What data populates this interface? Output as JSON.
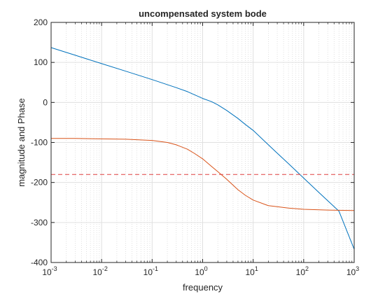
{
  "chart_data": {
    "type": "line",
    "title": "uncompensated system bode",
    "xlabel": "frequency",
    "ylabel": "magnitude and Phase",
    "xscale": "log",
    "xlim": [
      0.001,
      1000
    ],
    "ylim": [
      -400,
      200
    ],
    "grid": true,
    "minor_grid": true,
    "legend": "none",
    "x_ticks": [
      {
        "base": "10",
        "exp": "-3",
        "value": 0.001
      },
      {
        "base": "10",
        "exp": "-2",
        "value": 0.01
      },
      {
        "base": "10",
        "exp": "-1",
        "value": 0.1
      },
      {
        "base": "10",
        "exp": "0",
        "value": 1
      },
      {
        "base": "10",
        "exp": "1",
        "value": 10
      },
      {
        "base": "10",
        "exp": "2",
        "value": 100
      },
      {
        "base": "10",
        "exp": "3",
        "value": 1000
      }
    ],
    "y_ticks": [
      {
        "label": "200",
        "value": 200
      },
      {
        "label": "100",
        "value": 100
      },
      {
        "label": "0",
        "value": 0
      },
      {
        "label": "-100",
        "value": -100
      },
      {
        "label": "-200",
        "value": -200
      },
      {
        "label": "-300",
        "value": -300
      },
      {
        "label": "-400",
        "value": -400
      }
    ],
    "series": [
      {
        "color": "#0072bd",
        "style": "solid",
        "x": [
          0.001,
          0.003,
          0.01,
          0.03,
          0.1,
          0.3,
          0.5,
          1,
          1.5,
          2,
          3,
          5,
          7,
          10,
          20,
          30,
          50,
          100,
          200,
          500,
          1000
        ],
        "y": [
          137,
          118,
          97,
          78,
          57,
          37,
          27,
          10,
          2,
          -6,
          -20,
          -40,
          -55,
          -70,
          -106,
          -127,
          -153,
          -189,
          -225,
          -272,
          -367
        ]
      },
      {
        "color": "#d95319",
        "style": "solid",
        "x": [
          0.001,
          0.003,
          0.01,
          0.03,
          0.1,
          0.2,
          0.3,
          0.5,
          0.7,
          1,
          1.5,
          2,
          3,
          5,
          7,
          10,
          20,
          50,
          100,
          300,
          1000
        ],
        "y": [
          -90,
          -90,
          -91,
          -92,
          -95,
          -100,
          -106,
          -117,
          -128,
          -141,
          -160,
          -173,
          -192,
          -218,
          -232,
          -244,
          -258,
          -264,
          -267,
          -269,
          -270
        ]
      },
      {
        "color": "#e04040",
        "style": "dashed",
        "x": [
          0.001,
          1000
        ],
        "y": [
          -180,
          -180
        ]
      }
    ]
  }
}
